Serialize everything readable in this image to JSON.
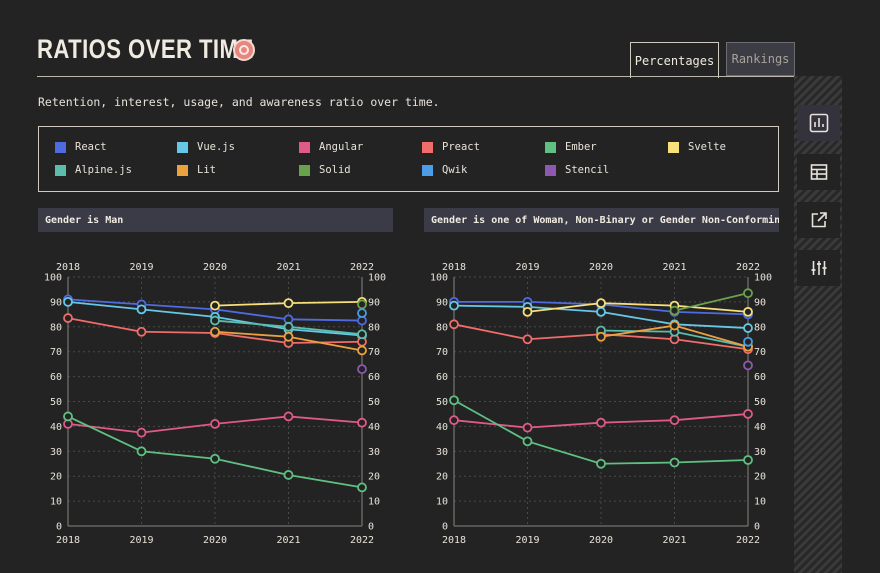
{
  "header": {
    "title": "RATIOS OVER TIME",
    "tabs": [
      {
        "label": "Percentages",
        "active": true
      },
      {
        "label": "Rankings",
        "active": false
      }
    ],
    "description": "Retention, interest, usage, and awareness ratio over time."
  },
  "legend": [
    {
      "name": "React",
      "color": "#4f6be0"
    },
    {
      "name": "Vue.js",
      "color": "#64c8e6"
    },
    {
      "name": "Angular",
      "color": "#e05a86"
    },
    {
      "name": "Preact",
      "color": "#ef6d6a"
    },
    {
      "name": "Ember",
      "color": "#5fc082"
    },
    {
      "name": "Svelte",
      "color": "#f7df7a"
    },
    {
      "name": "Alpine.js",
      "color": "#5cbdad"
    },
    {
      "name": "Lit",
      "color": "#eba23e"
    },
    {
      "name": "Solid",
      "color": "#6aa14c"
    },
    {
      "name": "Qwik",
      "color": "#4a9de6"
    },
    {
      "name": "Stencil",
      "color": "#8d58b0"
    }
  ],
  "sidebar": {
    "icons": [
      {
        "name": "bar-chart-icon",
        "active": true
      },
      {
        "name": "table-icon",
        "active": false
      },
      {
        "name": "export-icon",
        "active": false
      },
      {
        "name": "filter-sliders-icon",
        "active": false
      }
    ]
  },
  "chart_data": [
    {
      "type": "line",
      "title": "Gender is Man",
      "x": [
        "2018",
        "2019",
        "2020",
        "2021",
        "2022"
      ],
      "ylim": [
        0,
        100
      ],
      "yticks": [
        0,
        10,
        20,
        30,
        40,
        50,
        60,
        70,
        80,
        90,
        100
      ],
      "grid": true,
      "series": [
        {
          "name": "React",
          "values": [
            91,
            89,
            87,
            83,
            82.5
          ]
        },
        {
          "name": "Vue.js",
          "values": [
            90,
            87,
            84,
            79,
            76.5
          ]
        },
        {
          "name": "Angular",
          "values": [
            41,
            37.5,
            41,
            44,
            41.5
          ]
        },
        {
          "name": "Preact",
          "values": [
            83.5,
            78,
            77.5,
            73.5,
            74
          ]
        },
        {
          "name": "Ember",
          "values": [
            44,
            30,
            27,
            20.5,
            15.5
          ]
        },
        {
          "name": "Svelte",
          "values": [
            null,
            null,
            88.5,
            89.5,
            90
          ]
        },
        {
          "name": "Alpine.js",
          "values": [
            null,
            null,
            82.5,
            80,
            77
          ]
        },
        {
          "name": "Lit",
          "values": [
            null,
            null,
            78,
            76,
            70.5
          ]
        },
        {
          "name": "Solid",
          "values": [
            null,
            null,
            null,
            null,
            89
          ]
        },
        {
          "name": "Qwik",
          "values": [
            null,
            null,
            null,
            null,
            85.5
          ]
        },
        {
          "name": "Stencil",
          "values": [
            null,
            null,
            null,
            null,
            63
          ]
        }
      ]
    },
    {
      "type": "line",
      "title": "Gender is one of Woman, Non-Binary or Gender Non-Conforming",
      "x": [
        "2018",
        "2019",
        "2020",
        "2021",
        "2022"
      ],
      "ylim": [
        0,
        100
      ],
      "yticks": [
        0,
        10,
        20,
        30,
        40,
        50,
        60,
        70,
        80,
        90,
        100
      ],
      "grid": true,
      "series": [
        {
          "name": "React",
          "values": [
            90,
            90,
            89,
            86,
            85
          ]
        },
        {
          "name": "Vue.js",
          "values": [
            88.5,
            88,
            86,
            81,
            79.5
          ]
        },
        {
          "name": "Angular",
          "values": [
            42.5,
            39.5,
            41.5,
            42.5,
            45
          ]
        },
        {
          "name": "Preact",
          "values": [
            81,
            75,
            77,
            75,
            71
          ]
        },
        {
          "name": "Ember",
          "values": [
            50.5,
            34,
            25,
            25.5,
            26.5
          ]
        },
        {
          "name": "Svelte",
          "values": [
            null,
            86,
            89.5,
            88.5,
            86
          ]
        },
        {
          "name": "Alpine.js",
          "values": [
            null,
            null,
            78.5,
            78,
            72
          ]
        },
        {
          "name": "Lit",
          "values": [
            null,
            null,
            76,
            80.5,
            72
          ]
        },
        {
          "name": "Solid",
          "values": [
            null,
            null,
            null,
            86.5,
            93.5
          ]
        },
        {
          "name": "Qwik",
          "values": [
            null,
            null,
            null,
            null,
            74
          ]
        },
        {
          "name": "Stencil",
          "values": [
            null,
            null,
            null,
            null,
            64.5
          ]
        }
      ]
    }
  ]
}
